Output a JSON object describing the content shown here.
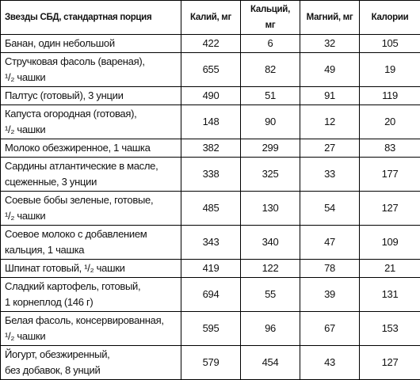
{
  "table": {
    "header": [
      "Звезды СБД, стандартная порция",
      "Калий, мг",
      "Кальций, мг",
      "Магний, мг",
      "Калории"
    ],
    "rows": [
      [
        "Банан, один небольшой",
        422,
        6,
        32,
        105
      ],
      [
        "Стручковая фасоль (вареная),\n¹/₂ чашки",
        655,
        82,
        49,
        19
      ],
      [
        "Палтус (готовый), 3 унции",
        490,
        51,
        91,
        119
      ],
      [
        "Капуста огородная (готовая),\n¹/₂ чашки",
        148,
        90,
        12,
        20
      ],
      [
        "Молоко обезжиренное, 1 чашка",
        382,
        299,
        27,
        83
      ],
      [
        "Сардины атлантические в масле,\nсцеженные, 3 унции",
        338,
        325,
        33,
        177
      ],
      [
        "Соевые бобы зеленые, готовые,\n¹/₂ чашки",
        485,
        130,
        54,
        127
      ],
      [
        "Соевое молоко с добавлением\nкальция, 1 чашка",
        343,
        340,
        47,
        109
      ],
      [
        "Шпинат готовый, ¹/₂ чашки",
        419,
        122,
        78,
        21
      ],
      [
        "Сладкий картофель, готовый,\n1 корнеплод (146 г)",
        694,
        55,
        39,
        131
      ],
      [
        "Белая фасоль, консервированная,\n¹/₂ чашки",
        595,
        96,
        67,
        153
      ],
      [
        "Йогурт, обезжиренный,\nбез добавок, 8 унций",
        579,
        454,
        43,
        127
      ]
    ]
  }
}
